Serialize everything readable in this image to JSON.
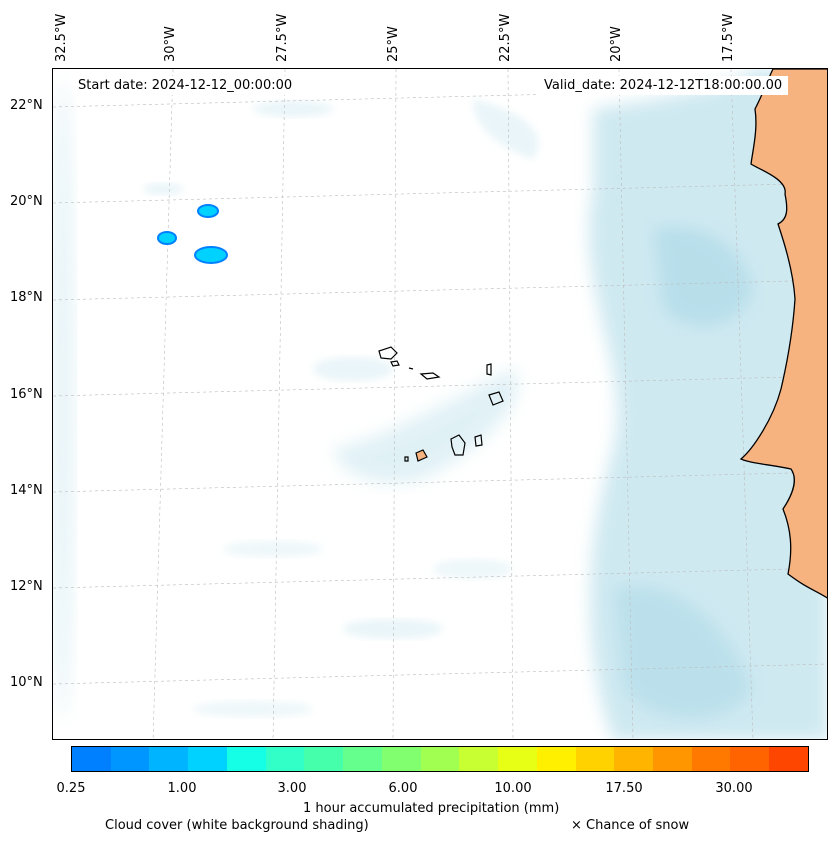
{
  "map": {
    "start_date": "Start date: 2024-12-12_00:00:00",
    "valid_date": "Valid_date: 2024-12-12T18:00:00.00",
    "longitude_labels": [
      "32.5°W",
      "30°W",
      "27.5°W",
      "25°W",
      "22.5°W",
      "20°W",
      "17.5°W"
    ],
    "latitude_labels": [
      "22°N",
      "20°N",
      "18°N",
      "16°N",
      "14°N",
      "12°N",
      "10°N"
    ],
    "colors": {
      "ocean": "#ffffff",
      "cloud": "#a9d8e6",
      "land": "#f6b27f",
      "coast": "#000000",
      "precip": "#00c8ff"
    }
  },
  "colorbar": {
    "label": "1 hour accumulated precipitation (mm)",
    "tick_labels": [
      "0.25",
      "1.00",
      "3.00",
      "6.00",
      "10.00",
      "17.50",
      "30.00"
    ],
    "colors": [
      "#0080ff",
      "#0096ff",
      "#00b4ff",
      "#00d2ff",
      "#14ffe6",
      "#32ffc8",
      "#46ffaa",
      "#64ff8c",
      "#82ff6e",
      "#a0ff50",
      "#c8ff32",
      "#e6ff14",
      "#fff000",
      "#ffd200",
      "#ffb400",
      "#ff9600",
      "#ff7800",
      "#ff6400",
      "#ff4600"
    ]
  },
  "legend": {
    "cloud_cover": "Cloud cover (white background shading)",
    "snow": "× Chance of snow"
  }
}
